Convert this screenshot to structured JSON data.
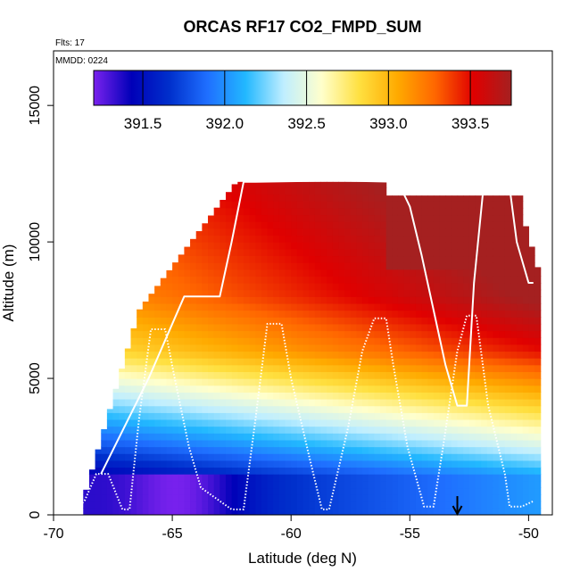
{
  "chart_data": {
    "type": "heatmap",
    "title": "ORCAS RF17 CO2_FMPD_SUM",
    "flights_note": "Flts: 17",
    "date_note": "MMDD: 0224",
    "xlabel": "Latitude (deg N)",
    "ylabel": "Altitude (m)",
    "xlim": [
      -70,
      -49
    ],
    "ylim": [
      0,
      17000
    ],
    "x_ticks": [
      -70,
      -65,
      -60,
      -55,
      -50
    ],
    "y_ticks": [
      0,
      5000,
      10000,
      15000
    ],
    "colorbar": {
      "range": [
        391.2,
        393.75
      ],
      "ticks": [
        391.5,
        392.0,
        392.5,
        393.0,
        393.5
      ],
      "tick_labels": [
        "391.5",
        "392.0",
        "392.5",
        "393.0",
        "393.5"
      ],
      "colors": [
        "#7a22ee",
        "#0000b8",
        "#0030cc",
        "#1f6fff",
        "#22b8ff",
        "#bfeeff",
        "#ffffcc",
        "#ffe040",
        "#ffaa00",
        "#ff6600",
        "#e00000",
        "#a52020"
      ]
    },
    "profile_x": [
      -69.0,
      -68.7,
      -68.2,
      -67.7,
      -67.1,
      -66.8,
      -66.4,
      -65.9,
      -65.3,
      -64.9,
      -64.3,
      -63.8,
      -62.5,
      -62.0,
      -61.5,
      -61.0,
      -60.4,
      -60.0,
      -59.2,
      -58.7,
      -58.4,
      -57.6,
      -57.0,
      -56.5,
      -56.0,
      -55.7,
      -55.1,
      -54.4,
      -54.0,
      -53.6,
      -53.0,
      -52.6,
      -52.2,
      -51.7,
      -51.0,
      -50.8,
      -50.3,
      -49.8
    ],
    "profile_alt": [
      300,
      500,
      1500,
      1500,
      200,
      200,
      3500,
      6800,
      6800,
      5000,
      2500,
      1000,
      200,
      200,
      3500,
      7000,
      7000,
      5000,
      2000,
      200,
      200,
      3200,
      6000,
      7200,
      7200,
      5500,
      2500,
      300,
      300,
      2500,
      6000,
      7300,
      7300,
      4000,
      1500,
      300,
      300,
      500
    ],
    "upper_leg_x": [
      -68.0,
      -66.0,
      -64.5,
      -63.0,
      -62.5,
      -62.0,
      -61.5,
      -58.0,
      -55.5,
      -55.0,
      -54.5,
      -54.0,
      -53.5,
      -53.0,
      -52.6,
      -52.3,
      -51.9,
      -50.8,
      -50.5,
      -50.0,
      -49.8
    ],
    "upper_leg_alt": [
      1500,
      5000,
      8000,
      8000,
      10000,
      12200,
      12200,
      12250,
      12200,
      11300,
      9500,
      7500,
      5500,
      4000,
      4000,
      8500,
      12000,
      12000,
      10000,
      8500,
      8500
    ],
    "arrow_lat": -53.0
  }
}
